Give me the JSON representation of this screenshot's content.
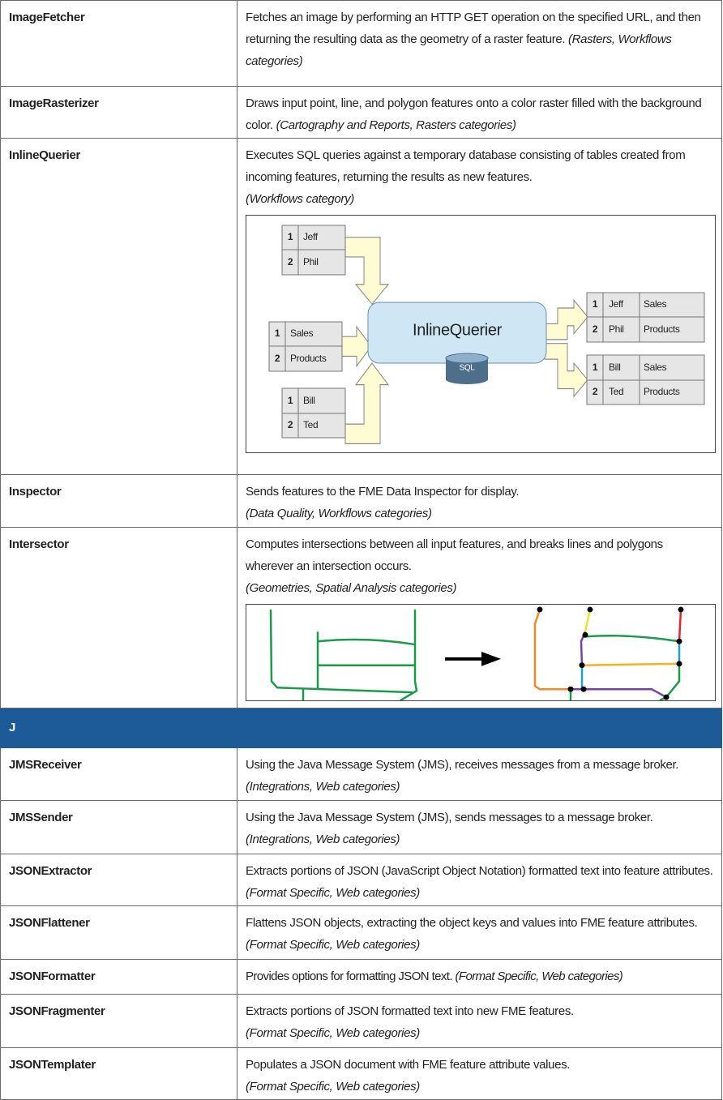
{
  "rows": [
    {
      "name": "ImageFetcher",
      "description": "Fetches an image by performing an HTTP GET operation on the specified URL, and then returning the resulting data as the geometry of a raster feature.",
      "categories": "(Rasters, Workflows categories)"
    },
    {
      "name": "ImageRasterizer",
      "description": "Draws input point, line, and polygon features onto a color raster filled with the background color.",
      "categories": "(Cartography and Reports, Rasters categories)"
    },
    {
      "name": "InlineQuerier",
      "description": "Executes SQL queries against a temporary database consisting of tables created from incoming features, returning the results as new features.",
      "categories": "(Workflows category)"
    },
    {
      "name": "Inspector",
      "description": "Sends features to the FME Data Inspector for display.",
      "categories": "(Data Quality, Workflows categories)"
    },
    {
      "name": "Intersector",
      "description": "Computes intersections between all input features, and breaks lines and polygons wherever an intersection occurs.",
      "categories": "(Geometries, Spatial Analysis categories)"
    }
  ],
  "inline_querier_diagram": {
    "left_tables": [
      [
        [
          "1",
          "Jeff"
        ],
        [
          "2",
          "Phil"
        ]
      ],
      [
        [
          "1",
          "Sales"
        ],
        [
          "2",
          "Products"
        ]
      ],
      [
        [
          "1",
          "Bill"
        ],
        [
          "2",
          "Ted"
        ]
      ]
    ],
    "center": "InlineQuerier",
    "database": "SQL",
    "right_tables": [
      [
        [
          "1",
          "Jeff",
          "Sales"
        ],
        [
          "2",
          "Phil",
          "Products"
        ]
      ],
      [
        [
          "1",
          "Bill",
          "Sales"
        ],
        [
          "2",
          "Ted",
          "Products"
        ]
      ]
    ]
  },
  "section": {
    "label": "J",
    "rows": [
      {
        "name": "JMSReceiver",
        "description": "Using the Java Message System (JMS), receives messages from a message broker.",
        "categories": "(Integrations, Web categories)"
      },
      {
        "name": "JMSSender",
        "description": "Using the Java Message System (JMS), sends messages to a message broker.",
        "categories": "(Integrations, Web categories)"
      },
      {
        "name": "JSONExtractor",
        "description": "Extracts portions of JSON (JavaScript Object Notation) formatted text into feature attributes.",
        "categories": "(Format Specific, Web categories)"
      },
      {
        "name": "JSONFlattener",
        "description": "Flattens JSON objects, extracting the object keys and values into FME feature attributes.",
        "categories": "(Format Specific, Web categories)"
      },
      {
        "name": "JSONFormatter",
        "description": "Provides options for formatting JSON text.",
        "categories": "(Format Specific, Web categories)"
      },
      {
        "name": "JSONFragmenter",
        "description": "Extracts portions of JSON formatted text into new FME features.",
        "categories": "(Format Specific, Web categories)"
      },
      {
        "name": "JSONTemplater",
        "description": "Populates a JSON document with FME feature attribute values.",
        "categories": "(Format Specific, Web categories)"
      }
    ]
  }
}
